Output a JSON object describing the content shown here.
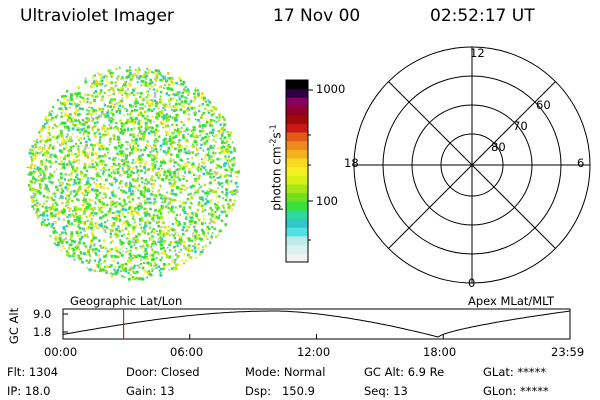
{
  "header": {
    "instrument": "Ultraviolet Imager",
    "date": "17 Nov 00",
    "time": "02:52:17 UT"
  },
  "colorbar": {
    "unit_label": "photon cm",
    "unit_exp_1": "-2",
    "unit_mid": "s",
    "unit_exp_2": "-1",
    "ticks": [
      "1000",
      "100"
    ],
    "colors": [
      "#f2f2f2",
      "#d9f2f2",
      "#bfeaea",
      "#55e0e0",
      "#30c8c8",
      "#2fd8a0",
      "#38e038",
      "#70e020",
      "#a8e818",
      "#d8f018",
      "#f5f020",
      "#f8d820",
      "#f5b020",
      "#f08820",
      "#e05a18",
      "#c81818",
      "#a00a0a",
      "#900028",
      "#8a0060",
      "#300040",
      "#000000"
    ],
    "accent_border": "#000000"
  },
  "polar_plot": {
    "mlt_labels": {
      "top": "12",
      "bottom": "0",
      "left": "18",
      "right": "6"
    },
    "lat_labels": [
      "60",
      "70",
      "80"
    ]
  },
  "image_panel": {
    "dot_colors": [
      "#38e038",
      "#a8e818",
      "#f5f020",
      "#30c8c8",
      "#70e020",
      "#f8d820",
      "#c0c0c0"
    ]
  },
  "timeline": {
    "label_left": "Geographic Lat/Lon",
    "label_right": "Apex MLat/MLT",
    "y_axis_label": "GC Alt",
    "y_ticks": [
      "9.0",
      "1.8"
    ],
    "x_ticks": [
      "00:00",
      "06:00",
      "12:00",
      "18:00",
      "23:59"
    ],
    "marker_color": "#cc0000",
    "current_fraction": 0.1196
  },
  "footer": {
    "row1": {
      "flt": "Flt: 1304",
      "door": "Door: Closed",
      "mode": "Mode: Normal",
      "gcalt": "GC Alt: 6.9 Re",
      "glat": "GLat: *****"
    },
    "row2": {
      "ip": "IP: 18.0",
      "gain": "Gain: 13",
      "dsp": "Dsp:   150.9",
      "seq": "Seq: 13",
      "glon": "GLon: *****"
    }
  }
}
